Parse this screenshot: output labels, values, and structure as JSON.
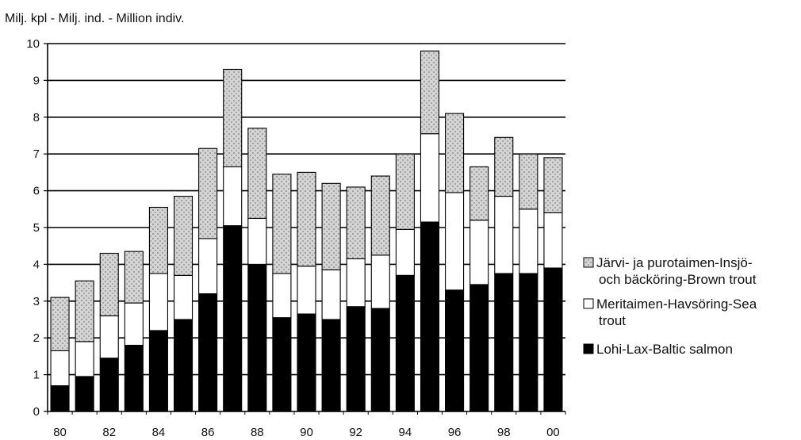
{
  "chart_data": {
    "type": "bar",
    "stacked": true,
    "unit_label": "Milj. kpl - Milj. ind. - Million indiv.",
    "years": [
      1980,
      1981,
      1982,
      1983,
      1984,
      1985,
      1986,
      1987,
      1988,
      1989,
      1990,
      1991,
      1992,
      1993,
      1994,
      1995,
      1996,
      1997,
      1998,
      1999,
      2000
    ],
    "x_tick_labels": [
      "80",
      "82",
      "84",
      "86",
      "88",
      "90",
      "92",
      "94",
      "96",
      "98",
      "00"
    ],
    "y_ticks": [
      0,
      1,
      2,
      3,
      4,
      5,
      6,
      7,
      8,
      9,
      10
    ],
    "ylim": [
      0,
      10
    ],
    "grid": true,
    "legend_position": "right",
    "series": [
      {
        "name": "Lohi-Lax-Baltic salmon",
        "values": [
          0.7,
          0.95,
          1.45,
          1.8,
          2.2,
          2.5,
          3.2,
          5.05,
          4.0,
          2.55,
          2.65,
          2.5,
          2.85,
          2.8,
          3.7,
          5.15,
          3.3,
          3.45,
          3.75,
          3.75,
          3.9
        ],
        "color": "#000000"
      },
      {
        "name": "Meritaimen-Havsöring-Sea trout",
        "values": [
          0.95,
          0.95,
          1.15,
          1.15,
          1.55,
          1.2,
          1.5,
          1.6,
          1.25,
          1.2,
          1.3,
          1.35,
          1.3,
          1.45,
          1.25,
          2.4,
          2.65,
          1.75,
          2.1,
          1.75,
          1.5
        ],
        "color": "#ffffff"
      },
      {
        "name": "Järvi- ja purotaimen-Insjö- och bäcköring-Brown trout",
        "values": [
          1.45,
          1.65,
          1.7,
          1.4,
          1.8,
          2.15,
          2.45,
          2.65,
          2.45,
          2.7,
          2.55,
          2.35,
          1.95,
          2.15,
          2.05,
          2.25,
          2.15,
          1.45,
          1.6,
          1.5,
          1.5
        ],
        "color": "#cfcfcf"
      }
    ],
    "legend": [
      {
        "series": 2,
        "lines": [
          "Järvi- ja purotaimen-Insjö-",
          "och bäcköring-Brown trout"
        ]
      },
      {
        "series": 1,
        "lines": [
          "Meritaimen-Havsöring-Sea",
          "trout"
        ]
      },
      {
        "series": 0,
        "lines": [
          "Lohi-Lax-Baltic salmon"
        ]
      }
    ]
  }
}
